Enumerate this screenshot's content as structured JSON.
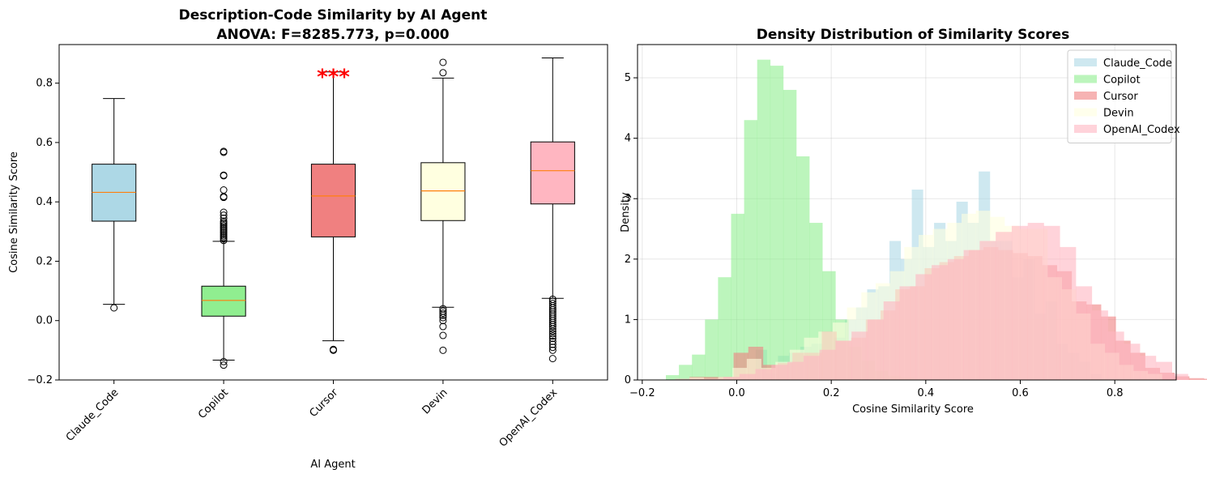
{
  "chart_data": [
    {
      "type": "box",
      "title": "Description-Code Similarity by AI Agent",
      "subtitle": "ANOVA: F=8285.773, p=0.000",
      "xlabel": "AI Agent",
      "ylabel": "Cosine Similarity Score",
      "ylim": [
        -0.2,
        0.93
      ],
      "yticks": [
        "−0.2",
        "0.0",
        "0.2",
        "0.4",
        "0.6",
        "0.8"
      ],
      "significance_label": "***",
      "significance_color": "#ff0000",
      "categories": [
        "Claude_Code",
        "Copilot",
        "Cursor",
        "Devin",
        "OpenAI_Codex"
      ],
      "colors": [
        "#add8e6",
        "#90ee90",
        "#f08080",
        "#ffffe0",
        "#ffb6c1"
      ],
      "median_color": "#ff7f0e",
      "boxes": [
        {
          "name": "Claude_Code",
          "whisker_low": 0.055,
          "q1": 0.335,
          "median": 0.432,
          "q3": 0.527,
          "whisker_high": 0.748,
          "outliers": [
            0.043
          ]
        },
        {
          "name": "Copilot",
          "whisker_low": -0.133,
          "q1": 0.015,
          "median": 0.068,
          "q3": 0.116,
          "whisker_high": 0.267,
          "outliers": [
            -0.138,
            -0.15,
            0.27,
            0.275,
            0.28,
            0.285,
            0.29,
            0.295,
            0.3,
            0.305,
            0.31,
            0.315,
            0.32,
            0.325,
            0.33,
            0.335,
            0.345,
            0.355,
            0.365,
            0.415,
            0.418,
            0.44,
            0.488,
            0.49,
            0.567,
            0.57
          ]
        },
        {
          "name": "Cursor",
          "whisker_low": -0.068,
          "q1": 0.282,
          "median": 0.42,
          "q3": 0.527,
          "whisker_high": 0.838,
          "outliers": [
            -0.097,
            -0.1
          ]
        },
        {
          "name": "Devin",
          "whisker_low": 0.045,
          "q1": 0.337,
          "median": 0.437,
          "q3": 0.532,
          "whisker_high": 0.817,
          "outliers": [
            0.04,
            0.032,
            0.025,
            0.018,
            0.01,
            0.0,
            -0.02,
            -0.05,
            -0.1,
            0.835,
            0.87
          ]
        },
        {
          "name": "OpenAI_Codex",
          "whisker_low": 0.075,
          "q1": 0.393,
          "median": 0.505,
          "q3": 0.602,
          "whisker_high": 0.885,
          "outliers": [
            0.072,
            0.065,
            0.058,
            0.05,
            0.043,
            0.036,
            0.029,
            0.022,
            0.015,
            0.008,
            0.001,
            -0.006,
            -0.013,
            -0.02,
            -0.028,
            -0.036,
            -0.044,
            -0.052,
            -0.06,
            -0.07,
            -0.08,
            -0.09,
            -0.1,
            -0.128
          ]
        }
      ]
    },
    {
      "type": "histogram",
      "title": "Density Distribution of Similarity Scores",
      "xlabel": "Cosine Similarity Score",
      "ylabel": "Density",
      "xlim": [
        -0.21,
        0.93
      ],
      "ylim": [
        0,
        5.55
      ],
      "xticks": [
        "−0.2",
        "0.0",
        "0.2",
        "0.4",
        "0.6",
        "0.8"
      ],
      "yticks": [
        "0",
        "1",
        "2",
        "3",
        "4",
        "5"
      ],
      "grid": true,
      "legend_position": "top-right",
      "series": [
        {
          "name": "Claude_Code",
          "color": "#add8e6",
          "opacity": 0.6,
          "start": 0.04,
          "width": 0.0236,
          "density": [
            0.5,
            0.1,
            0.4,
            0.45,
            0.55,
            0.6,
            0.8,
            0.7,
            1.0,
            1.2,
            1.5,
            1.55,
            2.3,
            2.0,
            3.15,
            2.2,
            2.6,
            2.3,
            2.95,
            2.6,
            3.45,
            2.3,
            2.3,
            1.7,
            2.0,
            1.1,
            1.3,
            0.6,
            0.45,
            0.3,
            0.1
          ]
        },
        {
          "name": "Copilot",
          "color": "#90ee90",
          "opacity": 0.6,
          "start": -0.15,
          "width": 0.0276,
          "density": [
            0.08,
            0.25,
            0.42,
            1.0,
            1.7,
            2.75,
            4.3,
            5.3,
            5.2,
            4.8,
            3.7,
            2.6,
            1.8,
            1.0,
            0.55,
            0.32,
            0.15,
            0.07,
            0.04,
            0.02,
            0.01,
            0.01,
            0.01,
            0.01,
            0.01,
            0.01
          ]
        },
        {
          "name": "Cursor",
          "color": "#f08080",
          "opacity": 0.6,
          "start": -0.1,
          "width": 0.0311,
          "density": [
            0.05,
            0.05,
            0.05,
            0.45,
            0.55,
            0.25,
            0.28,
            0.45,
            0.45,
            0.8,
            0.65,
            0.7,
            1.0,
            1.15,
            1.5,
            1.55,
            1.85,
            1.95,
            2.05,
            2.15,
            2.2,
            2.15,
            2.1,
            2.05,
            1.9,
            1.8,
            1.3,
            1.25,
            1.05,
            0.65,
            0.45,
            0.2,
            0.12,
            0.06,
            0.03,
            0.02
          ]
        },
        {
          "name": "Devin",
          "color": "#ffffe0",
          "opacity": 0.6,
          "start": -0.1,
          "width": 0.0303,
          "density": [
            0.04,
            0.02,
            0.05,
            0.2,
            0.35,
            0.2,
            0.3,
            0.5,
            0.7,
            0.8,
            0.95,
            1.2,
            1.45,
            1.6,
            1.8,
            2.2,
            2.4,
            2.5,
            2.6,
            2.75,
            2.8,
            2.7,
            2.55,
            2.5,
            2.5,
            1.7,
            1.5,
            1.1,
            0.6,
            0.45,
            0.25,
            0.15,
            0.1
          ]
        },
        {
          "name": "OpenAI_Codex",
          "color": "#ffb6c1",
          "opacity": 0.6,
          "start": -0.13,
          "width": 0.0339,
          "density": [
            0.02,
            0.02,
            0.02,
            0.05,
            0.1,
            0.18,
            0.25,
            0.3,
            0.4,
            0.5,
            0.65,
            0.8,
            1.0,
            1.3,
            1.55,
            1.75,
            1.9,
            2.0,
            2.15,
            2.3,
            2.45,
            2.55,
            2.6,
            2.55,
            2.2,
            1.55,
            1.15,
            0.8,
            0.6,
            0.4,
            0.3,
            0.1
          ]
        }
      ]
    }
  ]
}
